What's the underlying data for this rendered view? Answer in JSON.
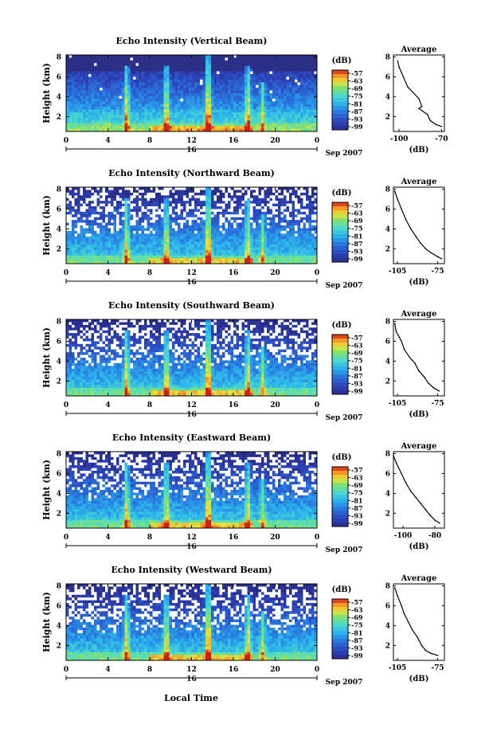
{
  "figure": {
    "xlabel": "Local Time",
    "date_unit": "Sep 2007",
    "day_label": "16",
    "colorbar_unit": "(dB)",
    "colorbar_ticks": [
      "-57",
      "-63",
      "-69",
      "-75",
      "-81",
      "-87",
      "-93",
      "-99"
    ],
    "colors": {
      "background_dark": "#2b2f8a",
      "low": "#3a3fb0",
      "mid": "#2cb4e8",
      "high_green": "#7fe07a",
      "high_yellow": "#f0e040",
      "peak": "#d02010"
    }
  },
  "chart_data": [
    {
      "type": "heatmap",
      "title": "Echo Intensity (Vertical Beam)",
      "ylabel": "Height (km)",
      "x_ticks": [
        "0",
        "4",
        "8",
        "12",
        "16",
        "20",
        "0"
      ],
      "y_ticks": [
        "2",
        "4",
        "6",
        "8"
      ],
      "xlim": [
        0,
        24
      ],
      "ylim": [
        0.5,
        8.2
      ],
      "plume_times": [
        5.8,
        9.6,
        13.6,
        17.4,
        18.8
      ],
      "profile": {
        "title": "Average",
        "xlabel": "(dB)",
        "x_ticks": [
          "-100",
          "-70"
        ],
        "y_ticks": [
          "2",
          "4",
          "6",
          "8"
        ],
        "xlim": [
          -104,
          -68
        ],
        "ylim": [
          0.5,
          8.2
        ],
        "points": [
          [
            -101,
            7.6
          ],
          [
            -100,
            7.0
          ],
          [
            -97,
            6.0
          ],
          [
            -94,
            5.0
          ],
          [
            -90,
            4.4
          ],
          [
            -86,
            3.8
          ],
          [
            -84,
            3.0
          ],
          [
            -86,
            2.8
          ],
          [
            -80,
            2.2
          ],
          [
            -78,
            1.6
          ],
          [
            -74,
            1.2
          ],
          [
            -70,
            1.0
          ]
        ]
      }
    },
    {
      "type": "heatmap",
      "title": "Echo Intensity (Northward Beam)",
      "ylabel": "Height (km)",
      "x_ticks": [
        "0",
        "4",
        "8",
        "12",
        "16",
        "20",
        "0"
      ],
      "y_ticks": [
        "2",
        "4",
        "6",
        "8"
      ],
      "xlim": [
        0,
        24
      ],
      "ylim": [
        0.5,
        8.2
      ],
      "plume_times": [
        5.8,
        9.6,
        13.6,
        17.4,
        18.8
      ],
      "profile": {
        "title": "Average",
        "xlabel": "(dB)",
        "x_ticks": [
          "-105",
          "-75"
        ],
        "y_ticks": [
          "2",
          "4",
          "6",
          "8"
        ],
        "xlim": [
          -108,
          -70
        ],
        "ylim": [
          0.5,
          8.2
        ],
        "points": [
          [
            -107,
            7.8
          ],
          [
            -105,
            7.0
          ],
          [
            -102,
            6.0
          ],
          [
            -99,
            5.0
          ],
          [
            -95,
            4.0
          ],
          [
            -91,
            3.2
          ],
          [
            -88,
            2.6
          ],
          [
            -84,
            2.0
          ],
          [
            -80,
            1.6
          ],
          [
            -75,
            1.2
          ],
          [
            -72,
            1.0
          ]
        ]
      }
    },
    {
      "type": "heatmap",
      "title": "Echo Intensity (Southward Beam)",
      "ylabel": "Height (km)",
      "x_ticks": [
        "0",
        "4",
        "8",
        "12",
        "16",
        "20",
        "0"
      ],
      "y_ticks": [
        "2",
        "4",
        "6",
        "8"
      ],
      "xlim": [
        0,
        24
      ],
      "ylim": [
        0.5,
        8.2
      ],
      "plume_times": [
        5.8,
        9.6,
        13.6,
        17.4,
        18.8
      ],
      "profile": {
        "title": "Average",
        "xlabel": "(dB)",
        "x_ticks": [
          "-105",
          "-75"
        ],
        "y_ticks": [
          "2",
          "4",
          "6",
          "8"
        ],
        "xlim": [
          -108,
          -70
        ],
        "ylim": [
          0.5,
          8.2
        ],
        "points": [
          [
            -107,
            7.8
          ],
          [
            -106,
            7.0
          ],
          [
            -102,
            6.0
          ],
          [
            -100,
            5.2
          ],
          [
            -96,
            4.4
          ],
          [
            -92,
            3.8
          ],
          [
            -89,
            3.0
          ],
          [
            -85,
            2.4
          ],
          [
            -82,
            1.8
          ],
          [
            -78,
            1.3
          ],
          [
            -74,
            1.0
          ]
        ]
      }
    },
    {
      "type": "heatmap",
      "title": "Echo Intensity (Eastward Beam)",
      "ylabel": "Height (km)",
      "x_ticks": [
        "0",
        "4",
        "8",
        "12",
        "16",
        "20",
        "0"
      ],
      "y_ticks": [
        "2",
        "4",
        "6",
        "8"
      ],
      "xlim": [
        0,
        24
      ],
      "ylim": [
        0.5,
        8.2
      ],
      "plume_times": [
        5.8,
        9.6,
        13.6,
        17.4,
        18.8
      ],
      "profile": {
        "title": "Average",
        "xlabel": "(dB)",
        "x_ticks": [
          "-100",
          "-80"
        ],
        "y_ticks": [
          "2",
          "4",
          "6",
          "8"
        ],
        "xlim": [
          -106,
          -74
        ],
        "ylim": [
          0.5,
          8.2
        ],
        "points": [
          [
            -106,
            7.8
          ],
          [
            -104,
            7.0
          ],
          [
            -101,
            6.0
          ],
          [
            -98,
            5.0
          ],
          [
            -95,
            4.2
          ],
          [
            -92,
            3.6
          ],
          [
            -89,
            3.0
          ],
          [
            -86,
            2.4
          ],
          [
            -83,
            1.8
          ],
          [
            -80,
            1.3
          ],
          [
            -77,
            1.0
          ]
        ]
      }
    },
    {
      "type": "heatmap",
      "title": "Echo Intensity (Westward Beam)",
      "ylabel": "Height (km)",
      "x_ticks": [
        "0",
        "4",
        "8",
        "12",
        "16",
        "20",
        "0"
      ],
      "y_ticks": [
        "2",
        "4",
        "6",
        "8"
      ],
      "xlim": [
        0,
        24
      ],
      "ylim": [
        0.5,
        8.2
      ],
      "plume_times": [
        5.8,
        9.6,
        13.6,
        17.4,
        18.8
      ],
      "profile": {
        "title": "Average",
        "xlabel": "(dB)",
        "x_ticks": [
          "-105",
          "-75"
        ],
        "y_ticks": [
          "2",
          "4",
          "6",
          "8"
        ],
        "xlim": [
          -108,
          -70
        ],
        "ylim": [
          0.5,
          8.2
        ],
        "points": [
          [
            -107,
            7.8
          ],
          [
            -105,
            7.0
          ],
          [
            -102,
            6.0
          ],
          [
            -100,
            5.2
          ],
          [
            -97,
            4.4
          ],
          [
            -94,
            3.6
          ],
          [
            -90,
            2.8
          ],
          [
            -87,
            2.0
          ],
          [
            -84,
            1.5
          ],
          [
            -80,
            1.2
          ],
          [
            -75,
            1.0
          ]
        ]
      }
    }
  ]
}
